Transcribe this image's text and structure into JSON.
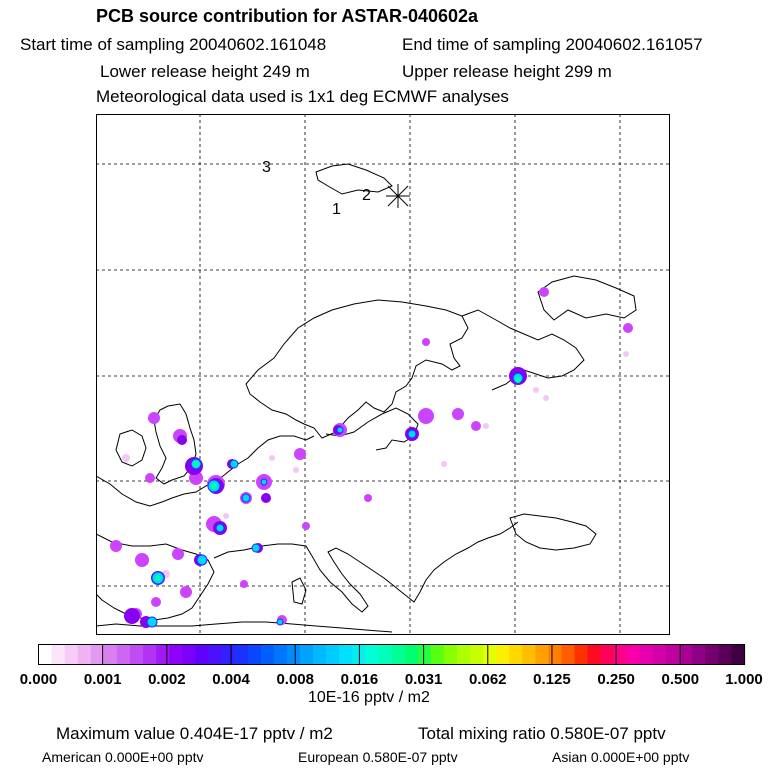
{
  "header": {
    "title": "PCB source contribution for ASTAR-040602a",
    "start_time": "Start time of sampling 20040602.161048",
    "end_time": "End time of sampling 20040602.161057",
    "lower_release": "Lower release height  249 m",
    "upper_release": "Upper release height  299 m",
    "met_data": "Meteorological data used is 1x1 deg ECMWF analyses"
  },
  "map": {
    "track_labels": [
      "1",
      "2",
      "3"
    ],
    "plume_colors": {
      "faint": "#f4c6f6",
      "low": "#cc44ff",
      "mid": "#8800ee",
      "high": "#00d6ff",
      "peak": "#00ffa8"
    }
  },
  "colorbar": {
    "ticks": [
      "0.000",
      "0.001",
      "0.002",
      "0.004",
      "0.008",
      "0.016",
      "0.031",
      "0.062",
      "0.125",
      "0.250",
      "0.500",
      "1.000"
    ],
    "units": "10E-16 pptv / m2",
    "colors": [
      "#ffffff",
      "#fbe5fb",
      "#f6ccf6",
      "#f0b2f2",
      "#e299f0",
      "#d980f0",
      "#cd66f2",
      "#bf4df2",
      "#b133f4",
      "#a11af6",
      "#9000fa",
      "#7a00fc",
      "#6200ff",
      "#4a10ff",
      "#3320ff",
      "#1c30ff",
      "#0a46ff",
      "#005eff",
      "#0076ff",
      "#008cff",
      "#00a2ff",
      "#00b8ff",
      "#00ccff",
      "#00e0ff",
      "#00f0f0",
      "#00ffd6",
      "#00ffb8",
      "#00ff96",
      "#00ff70",
      "#20ff40",
      "#58ff10",
      "#88ff00",
      "#aaff00",
      "#c8ff00",
      "#e4ff00",
      "#faf000",
      "#ffd800",
      "#ffbe00",
      "#ffa000",
      "#ff8000",
      "#ff5c00",
      "#ff3000",
      "#ff0a20",
      "#ff005a",
      "#ff0088",
      "#f800a8",
      "#e800b0",
      "#d400aa",
      "#be00a0",
      "#a80094",
      "#8e0084",
      "#760070",
      "#5a005a",
      "#3e0040"
    ]
  },
  "footer": {
    "max_value": "Maximum value  0.404E-17 pptv / m2",
    "total_mixing": "Total mixing ratio  0.580E-07 pptv",
    "american": "American  0.000E+00 pptv",
    "european": "European  0.580E-07 pptv",
    "asian": "Asian  0.000E+00 pptv"
  }
}
